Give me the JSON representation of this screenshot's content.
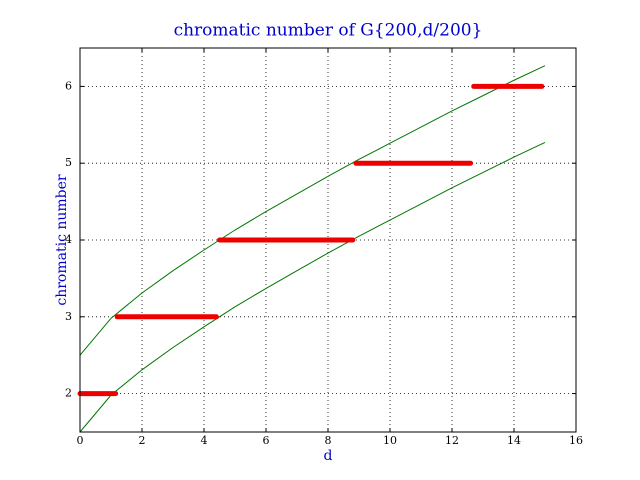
{
  "chart_data": {
    "type": "line",
    "title": "chromatic number of G{200,d/200}",
    "x_label": "d",
    "y_label": "chromatic number",
    "xlim": [
      0,
      16
    ],
    "ylim": [
      1.5,
      6.5
    ],
    "xticks": [
      0,
      2,
      4,
      6,
      8,
      10,
      12,
      14,
      16
    ],
    "yticks": [
      2,
      3,
      4,
      5,
      6
    ],
    "grid": true,
    "series": [
      {
        "color": "#007700",
        "x": [
          0,
          1,
          2,
          3,
          4,
          5,
          6,
          7,
          8,
          9,
          10,
          11,
          12,
          13,
          14,
          15
        ],
        "values": [
          2.5,
          2.98,
          3.31,
          3.6,
          3.87,
          4.13,
          4.37,
          4.6,
          4.83,
          5.05,
          5.26,
          5.47,
          5.68,
          5.88,
          6.08,
          6.27
        ]
      },
      {
        "color": "#007700",
        "x": [
          0,
          1,
          2,
          3,
          4,
          5,
          6,
          7,
          8,
          9,
          10,
          11,
          12,
          13,
          14,
          15
        ],
        "values": [
          1.5,
          1.98,
          2.31,
          2.6,
          2.87,
          3.13,
          3.37,
          3.6,
          3.83,
          4.05,
          4.26,
          4.47,
          4.68,
          4.88,
          5.08,
          5.27
        ]
      },
      {
        "color": "#ee0000",
        "width": 5,
        "x": [
          0,
          1.15
        ],
        "values": [
          2,
          2
        ]
      },
      {
        "color": "#ee0000",
        "width": 5,
        "x": [
          1.2,
          4.4
        ],
        "values": [
          3,
          3
        ]
      },
      {
        "color": "#ee0000",
        "width": 5,
        "x": [
          4.5,
          8.8
        ],
        "values": [
          4,
          4
        ]
      },
      {
        "color": "#ee0000",
        "width": 5,
        "x": [
          8.9,
          12.6
        ],
        "values": [
          5,
          5
        ]
      },
      {
        "color": "#ee0000",
        "width": 5,
        "x": [
          12.7,
          14.9
        ],
        "values": [
          6,
          6
        ]
      }
    ]
  }
}
